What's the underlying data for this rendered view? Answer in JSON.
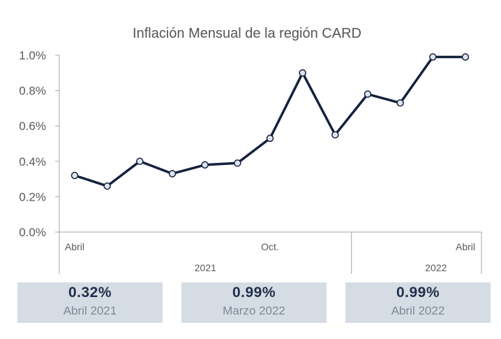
{
  "chart_data": {
    "type": "line",
    "title": "Inflación Mensual de la región CARD",
    "xlabel": "",
    "ylabel": "",
    "ylim": [
      0,
      1.0
    ],
    "yticks": [
      "0.0%",
      "0.2%",
      "0.4%",
      "0.6%",
      "0.8%",
      "1.0%"
    ],
    "x": [
      "2021-04",
      "2021-05",
      "2021-06",
      "2021-07",
      "2021-08",
      "2021-09",
      "2021-10",
      "2021-11",
      "2021-12",
      "2022-01",
      "2022-02",
      "2022-03",
      "2022-04"
    ],
    "x_tick_labels": [
      {
        "index": 0,
        "label": "Abril"
      },
      {
        "index": 6,
        "label": "Oct."
      },
      {
        "index": 12,
        "label": "Abril"
      }
    ],
    "year_labels": [
      "2021",
      "2022"
    ],
    "series": [
      {
        "values": [
          0.32,
          0.26,
          0.4,
          0.33,
          0.38,
          0.39,
          0.53,
          0.9,
          0.55,
          0.78,
          0.73,
          0.99,
          0.99
        ]
      }
    ],
    "grid": false,
    "legend": "none",
    "line_color": "#14213d",
    "marker_fill": "#dde4ee"
  },
  "stats": [
    {
      "value": "0.32%",
      "label": "Abril 2021"
    },
    {
      "value": "0.99%",
      "label": "Marzo 2022"
    },
    {
      "value": "0.99%",
      "label": "Abril 2022"
    }
  ]
}
